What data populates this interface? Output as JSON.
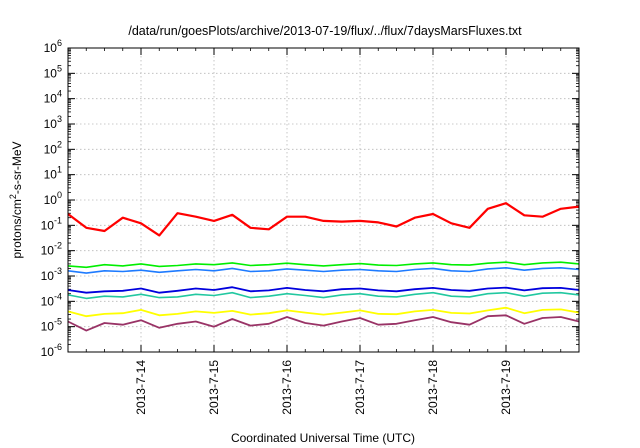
{
  "chart_data": {
    "type": "line",
    "title": "/data/run/goesPlots/archive/2013-07-19/flux/../flux/7daysMarsFluxes.txt",
    "xlabel": "Coordinated Universal Time (UTC)",
    "ylabel": "protons/cm2-s-sr-MeV",
    "ylabel_parts": {
      "pre": "protons/cm",
      "sup": "2",
      "post": "-s-sr-MeV"
    },
    "yscale": "log",
    "grid": true,
    "legend": "none",
    "ylim": [
      1e-06,
      1000000.0
    ],
    "y_ticks": [
      {
        "base": "10",
        "exp": "-6"
      },
      {
        "base": "10",
        "exp": "-5"
      },
      {
        "base": "10",
        "exp": "-4"
      },
      {
        "base": "10",
        "exp": "-3"
      },
      {
        "base": "10",
        "exp": "-2"
      },
      {
        "base": "10",
        "exp": "-1"
      },
      {
        "base": "10",
        "exp": "0"
      },
      {
        "base": "10",
        "exp": "1"
      },
      {
        "base": "10",
        "exp": "2"
      },
      {
        "base": "10",
        "exp": "3"
      },
      {
        "base": "10",
        "exp": "4"
      },
      {
        "base": "10",
        "exp": "5"
      },
      {
        "base": "10",
        "exp": "6"
      }
    ],
    "xlim": [
      "2013-07-13 00:00",
      "2013-07-20 00:00"
    ],
    "x_ticks": [
      "2013-7-14",
      "2013-7-15",
      "2013-7-16",
      "2013-7-17",
      "2013-7-18",
      "2013-7-19"
    ],
    "x_days": [
      0,
      0.25,
      0.5,
      0.75,
      1,
      1.25,
      1.5,
      1.75,
      2,
      2.25,
      2.5,
      2.75,
      3,
      3.25,
      3.5,
      3.75,
      4,
      4.25,
      4.5,
      4.75,
      5,
      5.25,
      5.5,
      5.75,
      6,
      6.25,
      6.5,
      6.75,
      7
    ],
    "series": [
      {
        "color": "#ff0000",
        "width": 2.2,
        "values": [
          0.28,
          0.08,
          0.06,
          0.2,
          0.12,
          0.04,
          0.3,
          0.22,
          0.15,
          0.26,
          0.08,
          0.07,
          0.22,
          0.22,
          0.15,
          0.14,
          0.15,
          0.13,
          0.09,
          0.2,
          0.28,
          0.12,
          0.08,
          0.45,
          0.75,
          0.25,
          0.22,
          0.45,
          0.55
        ]
      },
      {
        "color": "#00ee00",
        "width": 1.6,
        "values": [
          0.0025,
          0.0022,
          0.0028,
          0.0025,
          0.003,
          0.0024,
          0.0026,
          0.003,
          0.0028,
          0.0033,
          0.0026,
          0.0028,
          0.0032,
          0.0028,
          0.0025,
          0.0028,
          0.0031,
          0.0027,
          0.0026,
          0.003,
          0.0033,
          0.0028,
          0.0027,
          0.0032,
          0.0035,
          0.0028,
          0.0033,
          0.0035,
          0.003
        ]
      },
      {
        "color": "#1e7bff",
        "width": 1.6,
        "values": [
          0.0016,
          0.0013,
          0.0016,
          0.0015,
          0.0017,
          0.0014,
          0.0016,
          0.0018,
          0.0016,
          0.002,
          0.0015,
          0.0016,
          0.0019,
          0.0017,
          0.0015,
          0.0017,
          0.0018,
          0.0016,
          0.0015,
          0.0018,
          0.002,
          0.0016,
          0.0015,
          0.0019,
          0.0021,
          0.0017,
          0.002,
          0.0021,
          0.0018
        ]
      },
      {
        "color": "#0000dd",
        "width": 1.8,
        "values": [
          0.00028,
          0.00022,
          0.00025,
          0.00026,
          0.00032,
          0.00022,
          0.00026,
          0.00032,
          0.00028,
          0.00036,
          0.00025,
          0.00027,
          0.00034,
          0.00028,
          0.00025,
          0.0003,
          0.00032,
          0.00027,
          0.00025,
          0.0003,
          0.00034,
          0.00028,
          0.00026,
          0.00032,
          0.00035,
          0.00027,
          0.00033,
          0.00034,
          0.00028
        ]
      },
      {
        "color": "#22c8a0",
        "width": 1.6,
        "values": [
          0.00018,
          0.00013,
          0.00016,
          0.00015,
          0.00019,
          0.00014,
          0.00015,
          0.00019,
          0.00017,
          0.00022,
          0.00014,
          0.00016,
          0.0002,
          0.00017,
          0.00014,
          0.00018,
          0.0002,
          0.00016,
          0.00015,
          0.00019,
          0.00022,
          0.00016,
          0.00015,
          0.0002,
          0.00022,
          0.00016,
          0.00021,
          0.00022,
          0.00018
        ]
      },
      {
        "color": "#ffff00",
        "width": 1.8,
        "values": [
          4e-05,
          2.6e-05,
          3.2e-05,
          3.4e-05,
          4.6e-05,
          2.8e-05,
          3.2e-05,
          4e-05,
          3.5e-05,
          4.2e-05,
          3e-05,
          3.4e-05,
          4.4e-05,
          3.6e-05,
          3e-05,
          3.6e-05,
          4.4e-05,
          3.2e-05,
          3.1e-05,
          4e-05,
          4.6e-05,
          3.5e-05,
          3.3e-05,
          4.4e-05,
          5.6e-05,
          3.4e-05,
          4.6e-05,
          4.8e-05,
          3.6e-05
        ]
      },
      {
        "color": "#993366",
        "width": 1.8,
        "values": [
          1.6e-05,
          7e-06,
          1.4e-05,
          1.2e-05,
          1.8e-05,
          9e-06,
          1.3e-05,
          1.6e-05,
          1e-05,
          2e-05,
          1.1e-05,
          1.3e-05,
          2.4e-05,
          1.4e-05,
          1.1e-05,
          1.6e-05,
          2.2e-05,
          1.2e-05,
          1.3e-05,
          1.8e-05,
          2.4e-05,
          1.5e-05,
          1.2e-05,
          2.6e-05,
          2.8e-05,
          1.3e-05,
          2.2e-05,
          2.4e-05,
          1.6e-05
        ]
      }
    ]
  }
}
